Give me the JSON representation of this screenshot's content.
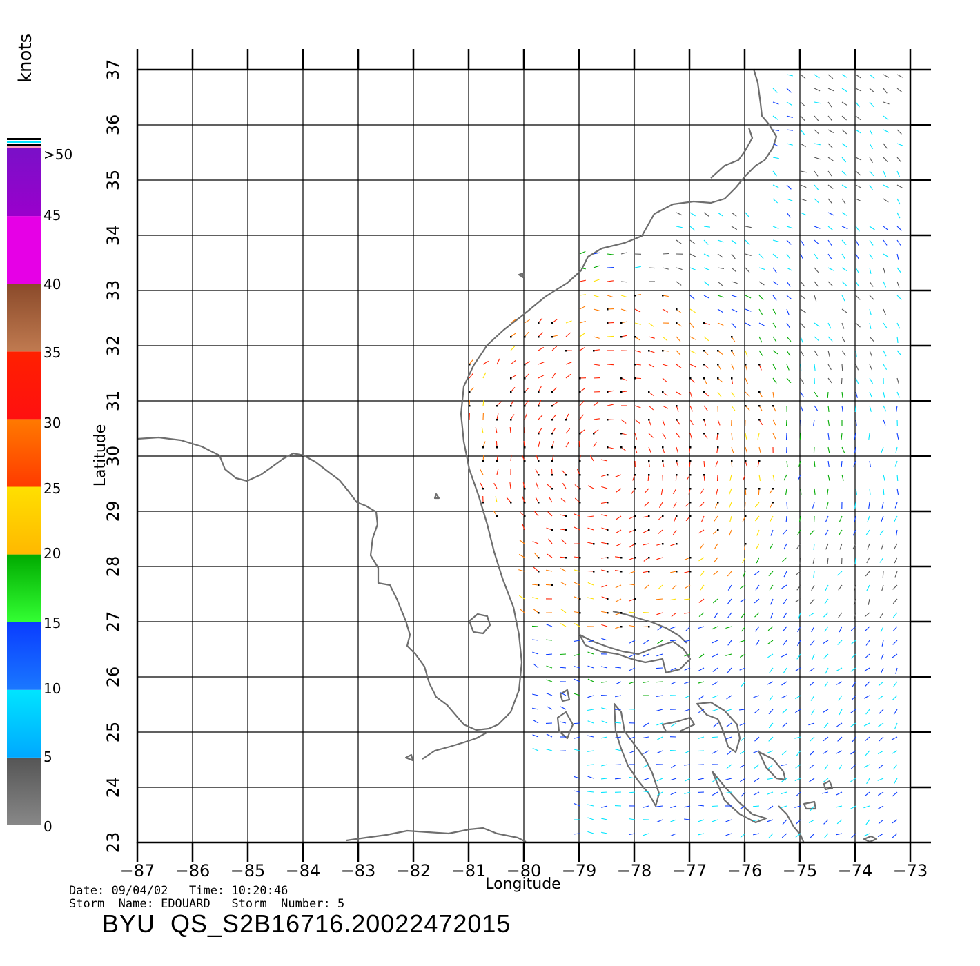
{
  "map": {
    "xlabel": "Longitude",
    "ylabel": "Latitude",
    "lon_range": [
      -87,
      -73
    ],
    "lat_range": [
      23,
      37
    ],
    "lon_ticks": [
      "−87",
      "−86",
      "−85",
      "−84",
      "−83",
      "−82",
      "−81",
      "−80",
      "−79",
      "−78",
      "−77",
      "−76",
      "−75",
      "−74",
      "−73"
    ],
    "lat_ticks": [
      "23",
      "24",
      "25",
      "26",
      "27",
      "28",
      "29",
      "30",
      "31",
      "32",
      "33",
      "34",
      "35",
      "36",
      "37"
    ]
  },
  "colorbar": {
    "units": "knots",
    "labels": [
      ">50",
      "45",
      "40",
      "35",
      "30",
      "25",
      "20",
      "15",
      "10",
      "5",
      "0"
    ],
    "label_values": [
      50,
      45,
      40,
      35,
      30,
      25,
      20,
      15,
      10,
      5,
      0
    ],
    "colors": {
      "0-5": "#555555",
      "5-10": "#00e5ff",
      "10-15": "#0a3cff",
      "15-20": "#00aa00",
      "20-25": "#ffe000",
      "25-30": "#ff7a00",
      "30-35": "#ff2000",
      "35-40": "#8a4a2a",
      "40-45": "#e600e6",
      "45-50": "#7a10c8"
    }
  },
  "footer": {
    "date_label": "Date:",
    "date": "09/04/02",
    "time_label": "Time:",
    "time": "10:20:46",
    "storm_name_label": "Storm  Name:",
    "storm_name": "EDOUARD",
    "storm_number_label": "Storm  Number:",
    "storm_number": "5",
    "product_id": "BYU  QS_S2B16716.20022472015"
  }
}
